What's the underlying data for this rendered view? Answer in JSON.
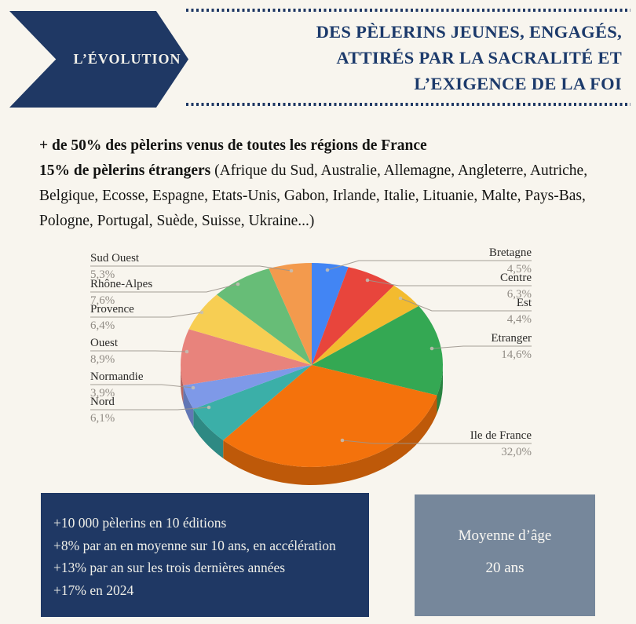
{
  "page": {
    "background": "#F8F5EE",
    "accent_navy": "#1F3864",
    "accent_gray": "#76879B"
  },
  "banner": {
    "label": "L’ÉVOLUTION"
  },
  "title": {
    "lines": [
      "DES PÈLERINS JEUNES, ENGAGÉS,",
      "ATTIRÉS PAR LA SACRALITÉ ET",
      "L’EXIGENCE DE LA FOI"
    ]
  },
  "intro": {
    "line1": "+ de 50% des pèlerins venus de toutes les régions de France",
    "line2_bold": "15% de pèlerins étrangers",
    "line2_rest": " (Afrique du Sud, Australie, Allemagne, Angleterre, Autriche, Belgique, Ecosse, Espagne, Etats-Unis, Gabon, Irlande, Italie, Lituanie, Malte, Pays-Bas, Pologne, Portugal, Suède, Suisse, Ukraine...)"
  },
  "chart_data": {
    "type": "pie",
    "style": "3d",
    "unit": "%",
    "legend_position": "outside-callouts",
    "labels": [
      "Bretagne",
      "Centre",
      "Est",
      "Etranger",
      "Ile de France",
      "Nord",
      "Normandie",
      "Ouest",
      "Provence",
      "Rhône-Alpes",
      "Sud Ouest"
    ],
    "values": [
      4.5,
      6.3,
      4.4,
      14.6,
      32.0,
      6.1,
      3.9,
      8.9,
      6.4,
      7.6,
      5.3
    ],
    "display_values": [
      "4,5%",
      "6,3%",
      "4,4%",
      "14,6%",
      "32,0%",
      "6,1%",
      "3,9%",
      "8,9%",
      "6,4%",
      "7,6%",
      "5,3%"
    ],
    "colors": [
      "#4285F4",
      "#E8453C",
      "#F3BB2F",
      "#34A853",
      "#F4720C",
      "#3BAFA8",
      "#7E99E8",
      "#E8837C",
      "#F7CE53",
      "#67BD77",
      "#F39A4D"
    ]
  },
  "stats_box": {
    "lines": [
      "+10 000 pèlerins en 10 éditions",
      "+8% par an en moyenne sur 10 ans, en accélération",
      "+13% par an sur les trois dernières années",
      "+17% en 2024"
    ]
  },
  "age_box": {
    "title": "Moyenne d’âge",
    "value": "20 ans"
  }
}
